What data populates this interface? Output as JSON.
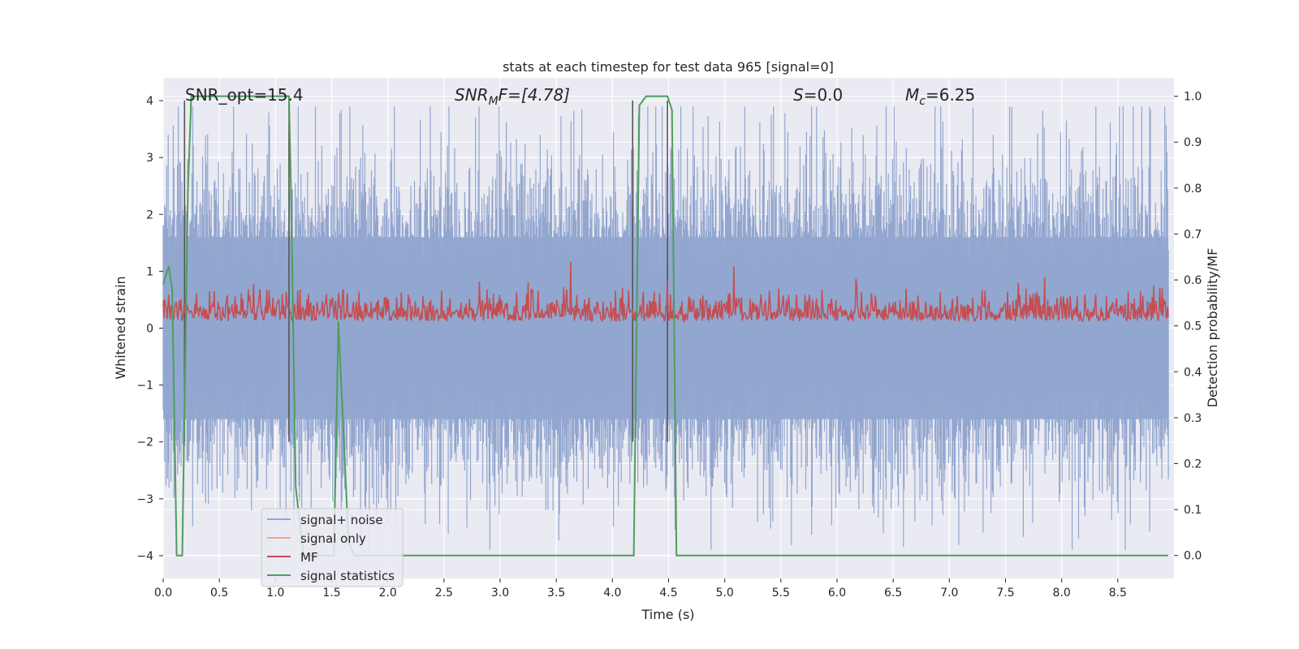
{
  "chart_data": {
    "type": "line",
    "title": "stats at each timestep for test data 965 [signal=0]",
    "xlabel": "Time (s)",
    "ylabel_left": "Whitened strain",
    "ylabel_right": "Detection probability/MF",
    "xlim": [
      0.0,
      9.0
    ],
    "ylim_left": [
      -4.4,
      4.4
    ],
    "ylim_right": [
      -0.05,
      1.04
    ],
    "xticks": [
      "0.0",
      "0.5",
      "1.0",
      "1.5",
      "2.0",
      "2.5",
      "3.0",
      "3.5",
      "4.0",
      "4.5",
      "5.0",
      "5.5",
      "6.0",
      "6.5",
      "7.0",
      "7.5",
      "8.0",
      "8.5"
    ],
    "yticks_left": [
      "−4",
      "−3",
      "−2",
      "−1",
      "0",
      "1",
      "2",
      "3",
      "4"
    ],
    "yticks_right": [
      "0.0",
      "0.1",
      "0.2",
      "0.3",
      "0.4",
      "0.5",
      "0.6",
      "0.7",
      "0.8",
      "0.9",
      "1.0"
    ],
    "grid": true,
    "legend_position": "lower-left",
    "annotations": {
      "snr_opt": "SNR_opt=15.4",
      "snr_mf_main": "SNR",
      "snr_mf_sub": "M",
      "snr_mf_rest": "F=[4.78]",
      "s_main": "S",
      "s_rest": "=0.0",
      "mc_main": "M",
      "mc_sub": "c",
      "mc_rest": "=6.25"
    },
    "series": [
      {
        "name": "signal+ noise",
        "color": "#92a6cf",
        "axis": "left",
        "description_values": "noise envelope approx between -2.6 and +2.6 with spikes up to about ±3.9",
        "noise_amplitude_typical": 1.6,
        "noise_peak_max": 3.9,
        "noise_peak_min": -3.9
      },
      {
        "name": "signal only",
        "color": "#e8a98c",
        "axis": "left",
        "values": []
      },
      {
        "name": "MF",
        "color": "#c44e52",
        "axis": "right",
        "baseline": 0.55,
        "range": [
          0.5,
          0.64
        ],
        "peak_x": 5.08,
        "peak_y": 0.63
      },
      {
        "name": "signal statistics",
        "color": "#4f9d5b",
        "axis": "right",
        "x": [
          0.0,
          0.05,
          0.08,
          0.12,
          0.17,
          0.22,
          0.25,
          0.3,
          1.12,
          1.14,
          1.18,
          1.25,
          1.52,
          1.56,
          1.65,
          1.7,
          4.19,
          4.24,
          4.3,
          4.49,
          4.53,
          4.57,
          8.95
        ],
        "y": [
          0.59,
          0.63,
          0.58,
          0.0,
          0.0,
          0.79,
          1.0,
          1.0,
          1.0,
          0.77,
          0.15,
          0.0,
          0.0,
          0.51,
          0.03,
          0.0,
          0.0,
          0.98,
          1.0,
          1.0,
          0.97,
          0.0,
          0.0
        ]
      }
    ],
    "vertical_markers": [
      {
        "color": "#555555",
        "x": [
          0.19,
          1.12,
          4.18,
          4.49
        ],
        "y_top": 4.0,
        "y_bottom": -2.0
      }
    ],
    "legend": [
      {
        "label": "signal+ noise",
        "color": "#92a6cf"
      },
      {
        "label": "signal only",
        "color": "#e8a98c"
      },
      {
        "label": "MF",
        "color": "#c44e52"
      },
      {
        "label": "signal statistics",
        "color": "#4f9d5b"
      }
    ]
  }
}
